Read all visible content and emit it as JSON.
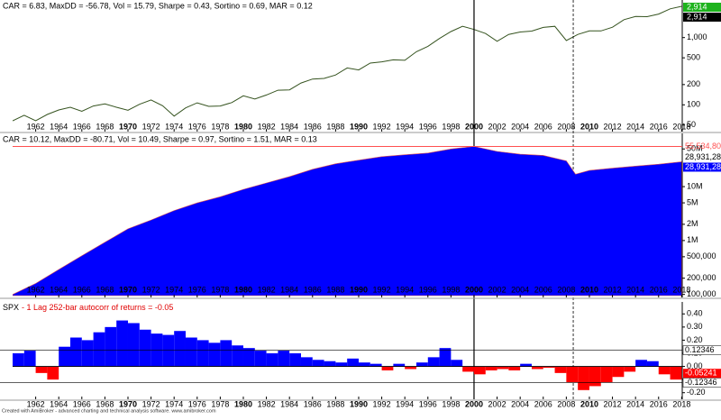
{
  "footer": "Created with AmiBroker - advanced charting and technical analysis software. www.amibroker.com",
  "chart_data": [
    {
      "type": "line",
      "title": "CAR = 6.83, MaxDD = -56.78, Vol = 15.79, Sharpe = 0.43, Sortino = 0.69, MAR = 0.12",
      "log_scale": true,
      "color": "#35531f",
      "last_label": "2,914",
      "last_label_color": "#1db31d",
      "vlines": [
        2000,
        2008.6
      ],
      "xlim": [
        1960,
        2018.05
      ],
      "xticks": [
        1962,
        1964,
        1966,
        1968,
        1970,
        1972,
        1974,
        1976,
        1978,
        1980,
        1982,
        1984,
        1986,
        1988,
        1990,
        1992,
        1994,
        1996,
        1998,
        2000,
        2002,
        2004,
        2006,
        2008,
        2010,
        2012,
        2014,
        2016,
        2018
      ],
      "ylim": [
        40,
        3300
      ],
      "yticks": [
        50,
        100,
        200,
        500,
        {
          "value": 1000,
          "label": "1,000"
        }
      ],
      "x": [
        1960,
        1961,
        1962,
        1963,
        1964,
        1965,
        1966,
        1967,
        1968,
        1969,
        1970,
        1971,
        1972,
        1973,
        1974,
        1975,
        1976,
        1977,
        1978,
        1979,
        1980,
        1981,
        1982,
        1983,
        1984,
        1985,
        1986,
        1987,
        1988,
        1989,
        1990,
        1991,
        1992,
        1993,
        1994,
        1995,
        1996,
        1997,
        1998,
        1999,
        2000,
        2001,
        2002,
        2003,
        2004,
        2005,
        2006,
        2007,
        2008,
        2009,
        2010,
        2011,
        2012,
        2013,
        2014,
        2015,
        2016,
        2017,
        2018
      ],
      "values": [
        58,
        70,
        58,
        72,
        84,
        92,
        80,
        96,
        103,
        92,
        83,
        102,
        118,
        97,
        68,
        90,
        107,
        95,
        96,
        108,
        136,
        122,
        140,
        165,
        167,
        211,
        242,
        247,
        278,
        353,
        330,
        417,
        436,
        466,
        459,
        616,
        741,
        970,
        1229,
        1469,
        1320,
        1148,
        880,
        1112,
        1212,
        1248,
        1418,
        1468,
        903,
        1115,
        1258,
        1258,
        1426,
        1848,
        2059,
        2044,
        2239,
        2674,
        2914
      ]
    },
    {
      "type": "area",
      "title": "CAR = 10.12, MaxDD = -80.71, Vol = 10.49, Sharpe = 0.97, Sortino = 1.51, MAR = 0.13",
      "log_scale": true,
      "color": "#0000ff",
      "peak_color": "#ff5050",
      "peak": {
        "value": 55534800,
        "label": "55,534,800"
      },
      "last_label": "28,931,280",
      "xlim": [
        1960,
        2018.05
      ],
      "xticks": [
        1962,
        1964,
        1966,
        1968,
        1970,
        1972,
        1974,
        1976,
        1978,
        1980,
        1982,
        1984,
        1986,
        1988,
        1990,
        1992,
        1994,
        1996,
        1998,
        2000,
        2002,
        2004,
        2006,
        2008,
        2010,
        2012,
        2014,
        2016,
        2018
      ],
      "ylim": [
        95000,
        90000000
      ],
      "yticks": [
        {
          "value": 100000,
          "label": "100,000"
        },
        {
          "value": 200000,
          "label": "200,000"
        },
        {
          "value": 500000,
          "label": "500,000"
        },
        {
          "value": 1000000,
          "label": "1M"
        },
        {
          "value": 2000000,
          "label": "2M"
        },
        {
          "value": 5000000,
          "label": "5M"
        },
        {
          "value": 10000000,
          "label": "10M"
        },
        {
          "value": 50000000,
          "label": "50M"
        }
      ],
      "x": [
        1960,
        1962,
        1964,
        1966,
        1968,
        1970,
        1972,
        1974,
        1976,
        1978,
        1980,
        1982,
        1984,
        1986,
        1988,
        1990,
        1992,
        1994,
        1996,
        1998,
        2000,
        2002,
        2004,
        2006,
        2008,
        2008.8,
        2010,
        2012,
        2014,
        2016,
        2018
      ],
      "values": [
        100000,
        160000,
        290000,
        520000,
        930000,
        1650000,
        2400000,
        3600000,
        5000000,
        6500000,
        8900000,
        11700000,
        15400000,
        21000000,
        26600000,
        31000000,
        36000000,
        39000000,
        42000000,
        50000000,
        55534800,
        45000000,
        40000000,
        38000000,
        30000000,
        17000000,
        20000000,
        22000000,
        24000000,
        26000000,
        28931280
      ]
    },
    {
      "type": "bar",
      "title_prefix": "SPX",
      "title": "- 1 Lag 252-bar autocorr of returns = -0.05",
      "positive_color": "#0000ff",
      "negative_color": "#ff0000",
      "ref_lines": [
        0.12346,
        -0.12346
      ],
      "xlim": [
        1960,
        2018.05
      ],
      "xticks": [
        1962,
        1964,
        1966,
        1968,
        1970,
        1972,
        1974,
        1976,
        1978,
        1980,
        1982,
        1984,
        1986,
        1988,
        1990,
        1992,
        1994,
        1996,
        1998,
        2000,
        2002,
        2004,
        2006,
        2008,
        2010,
        2012,
        2014,
        2016,
        2018
      ],
      "ylim": [
        -0.25,
        0.45
      ],
      "yticks": [
        {
          "value": 0.4,
          "label": "0.40"
        },
        {
          "value": 0.3,
          "label": "0.30"
        },
        {
          "value": 0.2,
          "label": "0.20"
        },
        {
          "value": 0.1,
          "label": "0.10"
        },
        {
          "value": 0,
          "label": "0.00"
        },
        {
          "value": -0.1,
          "label": "-0.10"
        },
        {
          "value": -0.2,
          "label": "-0.20"
        }
      ],
      "x": [
        1960,
        1961,
        1962,
        1963,
        1964,
        1965,
        1966,
        1967,
        1968,
        1969,
        1970,
        1971,
        1972,
        1973,
        1974,
        1975,
        1976,
        1977,
        1978,
        1979,
        1980,
        1981,
        1982,
        1983,
        1984,
        1985,
        1986,
        1987,
        1988,
        1989,
        1990,
        1991,
        1992,
        1993,
        1994,
        1995,
        1996,
        1997,
        1998,
        1999,
        2000,
        2001,
        2002,
        2003,
        2004,
        2005,
        2006,
        2007,
        2008,
        2009,
        2010,
        2011,
        2012,
        2013,
        2014,
        2015,
        2016,
        2017,
        2018
      ],
      "values": [
        0.1,
        0.12,
        -0.05,
        -0.1,
        0.15,
        0.22,
        0.2,
        0.26,
        0.3,
        0.35,
        0.33,
        0.28,
        0.25,
        0.24,
        0.27,
        0.22,
        0.2,
        0.18,
        0.2,
        0.16,
        0.14,
        0.12,
        0.1,
        0.12,
        0.1,
        0.07,
        0.05,
        0.04,
        0.03,
        0.06,
        0.03,
        0.02,
        -0.03,
        0.02,
        -0.02,
        0.03,
        0.07,
        0.14,
        0.05,
        -0.04,
        -0.06,
        -0.03,
        -0.02,
        -0.03,
        0.02,
        -0.02,
        -0.01,
        -0.05,
        -0.12,
        -0.18,
        -0.15,
        -0.12,
        -0.08,
        -0.04,
        0.05,
        0.04,
        -0.06,
        -0.1,
        -0.05241
      ]
    }
  ]
}
